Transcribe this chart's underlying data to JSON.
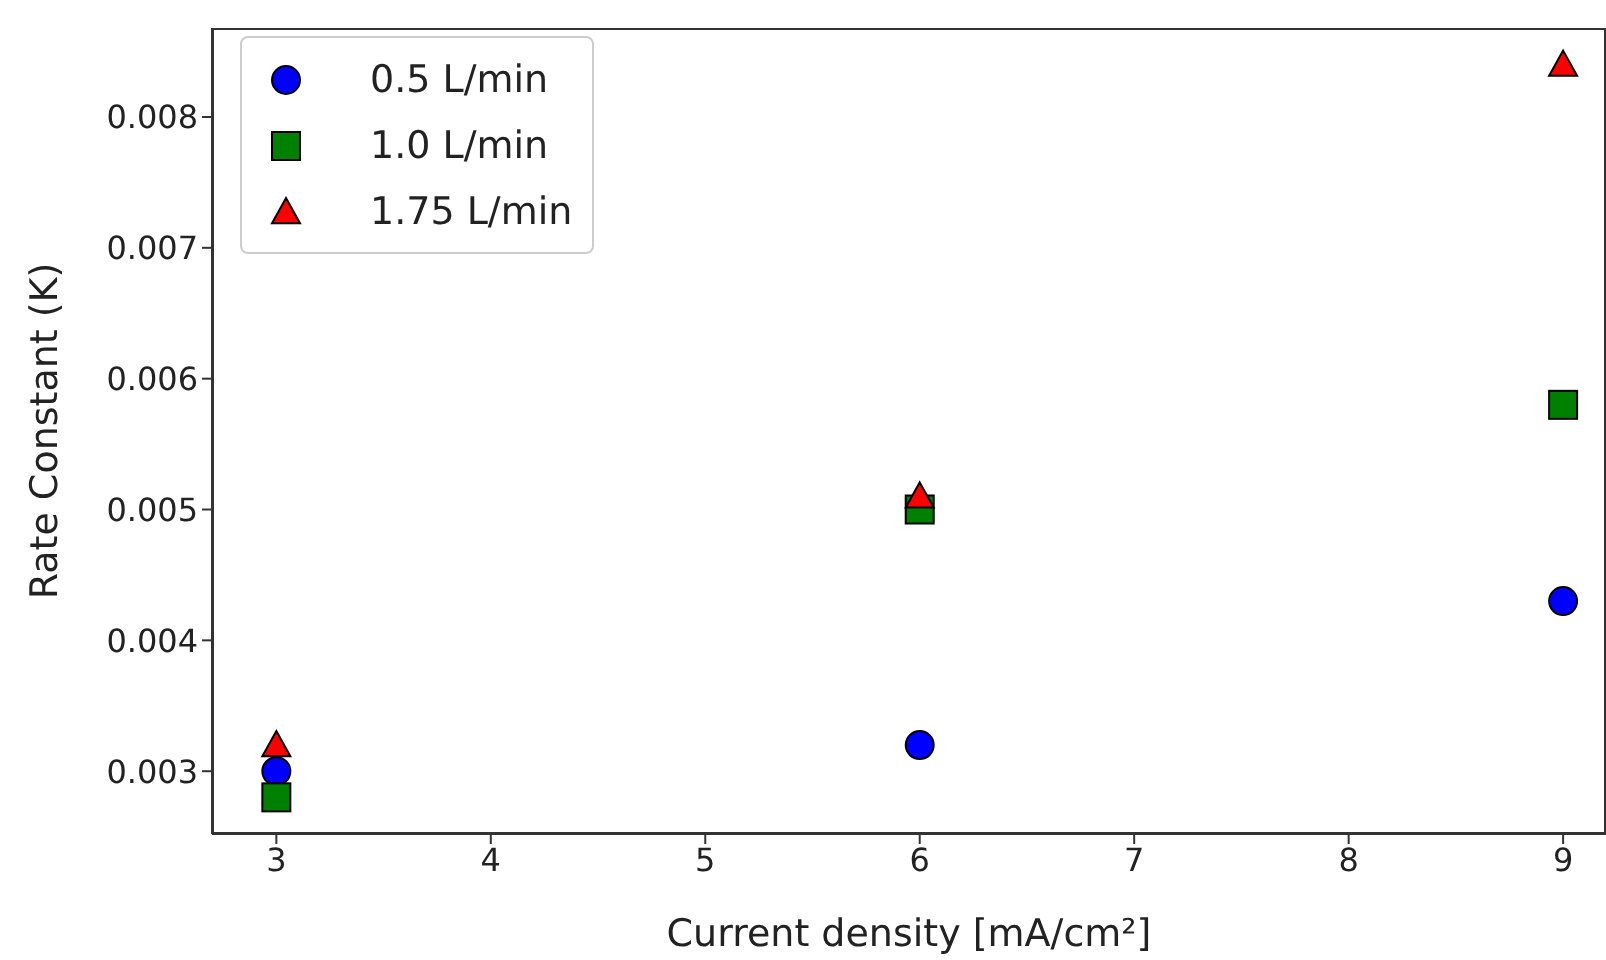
{
  "chart_data": {
    "type": "scatter",
    "xlabel": "Current density [mA/cm²]",
    "ylabel": "Rate Constant (K)",
    "x": [
      3,
      6,
      9
    ],
    "series": [
      {
        "name": "0.5 L/min",
        "color": "#0000ff",
        "marker": "circle",
        "values": [
          0.003,
          0.0032,
          0.0043
        ]
      },
      {
        "name": "1.0 L/min",
        "color": "#008000",
        "marker": "square",
        "values": [
          0.0028,
          0.005,
          0.0058
        ]
      },
      {
        "name": "1.75 L/min",
        "color": "#ff0000",
        "marker": "triangle",
        "values": [
          0.0032,
          0.0051,
          0.0084
        ]
      }
    ],
    "xlim": [
      2.7,
      9.2
    ],
    "xticks": [
      3,
      4,
      5,
      6,
      7,
      8,
      9
    ],
    "ylim": [
      0.00252,
      0.00868
    ],
    "yticks": [
      0.003,
      0.004,
      0.005,
      0.006,
      0.007,
      0.008
    ],
    "grid": false,
    "legend": "top left"
  }
}
